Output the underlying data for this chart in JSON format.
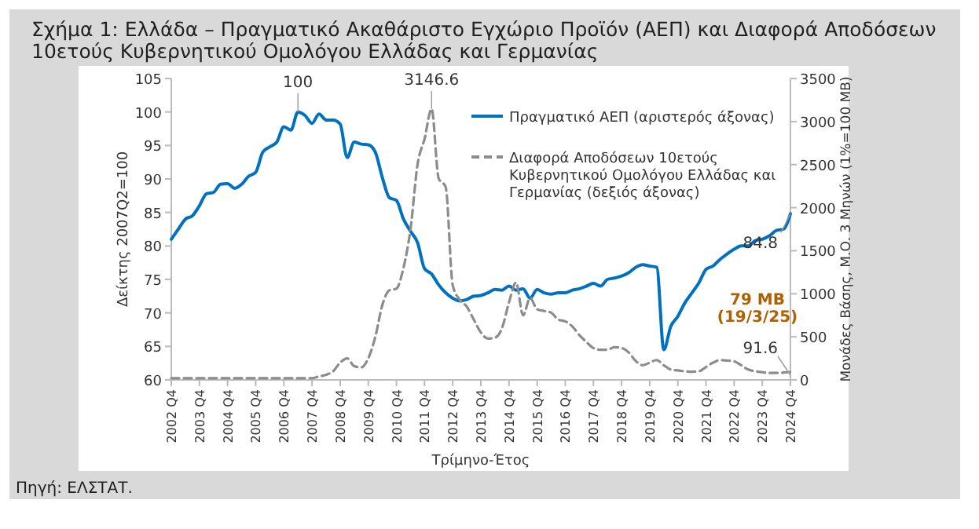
{
  "chart_data": {
    "type": "line",
    "title": "Σχήμα 1: Ελλάδα – Πραγματικό Ακαθάριστο Εγχώριο Προϊόν (ΑΕΠ) και Διαφορά Αποδόσεων 10ετούς Κυβερνητικού Ομολόγου Ελλάδας και Γερμανίας",
    "xlabel": "Τρίμηνο-Έτος",
    "ylabel": "Δείκτης 2007Q2=100",
    "y2label": "Μονάδες Βάσης, Μ.Ο. 3 Μηνών (1%=100 ΜΒ)",
    "categories": [
      "2002 Q4",
      null,
      null,
      null,
      "2003 Q4",
      null,
      null,
      null,
      "2004 Q4",
      null,
      null,
      null,
      "2005 Q4",
      null,
      null,
      null,
      "2006 Q4",
      null,
      null,
      null,
      "2007 Q4",
      null,
      null,
      null,
      "2008 Q4",
      null,
      null,
      null,
      "2009 Q4",
      null,
      null,
      null,
      "2010 Q4",
      null,
      null,
      null,
      "2011 Q4",
      null,
      null,
      null,
      "2012 Q4",
      null,
      null,
      null,
      "2013 Q4",
      null,
      null,
      null,
      "2014 Q4",
      null,
      null,
      null,
      "2015 Q4",
      null,
      null,
      null,
      "2016 Q4",
      null,
      null,
      null,
      "2017 Q4",
      null,
      null,
      null,
      "2018 Q4",
      null,
      null,
      null,
      "2019 Q4",
      null,
      null,
      null,
      "2020 Q4",
      null,
      null,
      null,
      "2021 Q4",
      null,
      null,
      null,
      "2022 Q4",
      null,
      null,
      null,
      "2023 Q4",
      null,
      null,
      null,
      "2024 Q4"
    ],
    "series": [
      {
        "name": "Πραγματικό ΑΕΠ (αριστερός άξονας)",
        "color": "#0070c0",
        "line_style": "solid",
        "values": [
          81.0,
          82.5,
          84.0,
          84.5,
          86.0,
          87.8,
          88.0,
          89.2,
          89.3,
          88.6,
          89.2,
          90.4,
          91.0,
          94.0,
          94.8,
          95.5,
          97.8,
          97.3,
          100,
          99.5,
          98.3,
          99.7,
          98.8,
          98.8,
          98.2,
          93.2,
          95.5,
          95.2,
          95.1,
          94.0,
          90.2,
          87.2,
          86.8,
          84.0,
          82.2,
          80.5,
          76.6,
          75.8,
          74.2,
          73.0,
          72.2,
          71.8,
          72.0,
          72.5,
          72.6,
          73.0,
          73.5,
          73.4,
          74.0,
          73.4,
          73.6,
          72.2,
          73.5,
          73.0,
          72.8,
          73.0,
          73.0,
          73.4,
          73.6,
          74.0,
          74.4,
          74.0,
          75.0,
          75.2,
          75.5,
          76.0,
          76.8,
          77.2,
          77.0,
          76.8,
          64.5,
          68.0,
          69.5,
          71.5,
          73.0,
          74.5,
          76.5,
          77.0,
          78.0,
          78.8,
          79.5,
          80.0,
          80.0,
          80.8,
          81.0,
          81.5,
          82.3,
          82.5,
          84.8
        ]
      },
      {
        "name": "Διαφορά Αποδόσεων 10ετούς Κυβερνητικού Ομολόγου Ελλάδας και Γερμανίας (δεξιός άξονας)",
        "color": "#8c8c8c",
        "line_style": "dashed",
        "axis": "y2",
        "values": [
          20,
          20,
          20,
          20,
          20,
          20,
          20,
          20,
          20,
          20,
          20,
          20,
          20,
          20,
          20,
          20,
          20,
          20,
          20,
          20,
          20,
          40,
          60,
          100,
          200,
          250,
          160,
          145,
          250,
          500,
          870,
          1040,
          1060,
          1300,
          1750,
          2500,
          2800,
          3146.6,
          2340,
          2240,
          1100,
          930,
          850,
          700,
          550,
          480,
          490,
          600,
          900,
          1130,
          750,
          950,
          820,
          800,
          780,
          700,
          680,
          620,
          520,
          440,
          370,
          350,
          350,
          380,
          370,
          320,
          220,
          170,
          200,
          230,
          170,
          120,
          110,
          100,
          95,
          100,
          150,
          200,
          230,
          225,
          215,
          170,
          120,
          100,
          90,
          80,
          80,
          85,
          91.6
        ]
      }
    ],
    "ylim": [
      60,
      105
    ],
    "yticks": [
      60,
      65,
      70,
      75,
      80,
      85,
      90,
      95,
      100,
      105
    ],
    "y2lim": [
      0,
      3500
    ],
    "y2ticks": [
      0,
      500,
      1000,
      1500,
      2000,
      2500,
      3000,
      3500
    ],
    "legend": "top right",
    "grid": false,
    "marker": "none",
    "annotations": [
      {
        "text": "100",
        "y": 100
      },
      "3146.6",
      {
        "text": "84.8",
        "x": "2024 Q4",
        "y": 84.8
      },
      "91.6",
      "79 ΜΒ (19/3/25)",
      "Πηγή: ΕΛΣΤΑΤ."
    ]
  }
}
